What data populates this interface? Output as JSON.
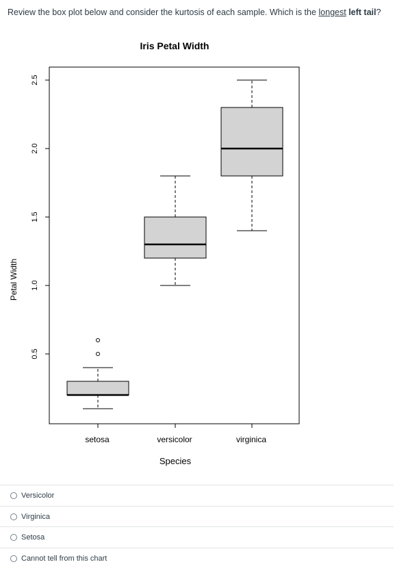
{
  "question": {
    "prefix": "Review the box plot below and consider the kurtosis of each sample. Which is the ",
    "underlined": "longest",
    "space": " ",
    "bold": "left tail",
    "suffix": "?"
  },
  "chart_data": {
    "type": "box",
    "title": "Iris Petal Width",
    "xlabel": "Species",
    "ylabel": "Petal Width",
    "categories": [
      "setosa",
      "versicolor",
      "virginica"
    ],
    "yticks": [
      "0.5",
      "1.0",
      "1.5",
      "2.0",
      "2.5"
    ],
    "ylim": [
      0.1,
      2.5
    ],
    "boxes": [
      {
        "name": "setosa",
        "whisker_low": 0.1,
        "q1": 0.2,
        "median": 0.2,
        "q3": 0.3,
        "whisker_high": 0.4,
        "outliers": [
          0.5,
          0.6
        ]
      },
      {
        "name": "versicolor",
        "whisker_low": 1.0,
        "q1": 1.2,
        "median": 1.3,
        "q3": 1.5,
        "whisker_high": 1.8,
        "outliers": []
      },
      {
        "name": "virginica",
        "whisker_low": 1.4,
        "q1": 1.8,
        "median": 2.0,
        "q3": 2.3,
        "whisker_high": 2.5,
        "outliers": []
      }
    ],
    "colors": {
      "box_fill": "#d3d3d3",
      "stroke": "#000000"
    }
  },
  "answers": [
    "Versicolor",
    "Virginica",
    "Setosa",
    "Cannot tell from this chart"
  ]
}
